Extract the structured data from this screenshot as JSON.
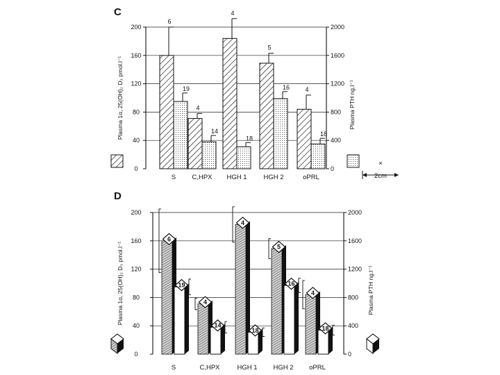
{
  "chart_data": [
    {
      "panel": "C",
      "type": "bar",
      "style": "hatched-2d",
      "categories": [
        "S",
        "C,HPX",
        "HGH 1",
        "HGH 2",
        "oPRL"
      ],
      "left_axis": {
        "label": "Plasma 1α, 25(OH)₂ D₃ pmol.l⁻¹",
        "ticks": [
          "0",
          "40",
          "80",
          "120",
          "160",
          "200"
        ],
        "range": [
          0,
          200
        ]
      },
      "right_axis": {
        "label": "Plasma PTH  ng.l⁻¹",
        "ticks": [
          "0",
          "400",
          "800",
          "1200",
          "1600",
          "2000"
        ],
        "range": [
          0,
          2000
        ]
      },
      "series": [
        {
          "name": "Plasma 1α, 25(OH)₂ D₃",
          "axis": "left",
          "values": [
            160,
            71,
            184,
            149,
            84
          ],
          "errors": [
            40,
            7,
            28,
            14,
            20
          ],
          "n": [
            "6",
            "4",
            "4",
            "5",
            "4"
          ]
        },
        {
          "name": "Plasma PTH",
          "axis": "right",
          "values": [
            950,
            380,
            310,
            990,
            350
          ],
          "errors": [
            120,
            90,
            60,
            100,
            80
          ],
          "n": [
            "19",
            "14",
            "18",
            "16",
            "18"
          ]
        }
      ],
      "scale_bar": {
        "mark": "×",
        "label": "2cm"
      },
      "grid": "horizontal"
    },
    {
      "panel": "D",
      "type": "bar",
      "style": "3d-columns",
      "categories": [
        "S",
        "C,HPX",
        "HGH 1",
        "HGH 2",
        "oPRL"
      ],
      "left_axis": {
        "label": "Plasma 1α, 25(OH)₂ D₃ pmol.l⁻¹",
        "ticks": [
          "0",
          "40",
          "80",
          "120",
          "160",
          "200"
        ],
        "range": [
          0,
          200
        ]
      },
      "right_axis": {
        "label": "Plasma PTH ng.l⁻¹",
        "ticks": [
          "0",
          "400",
          "800",
          "1200",
          "1600",
          "2000"
        ],
        "range": [
          0,
          2000
        ]
      },
      "series": [
        {
          "name": "Plasma 1α, 25(OH)₂ D₃",
          "axis": "left",
          "values": [
            160,
            71,
            183,
            149,
            84
          ],
          "errors": [
            45,
            8,
            25,
            14,
            20
          ],
          "n": [
            "6",
            "4",
            "4",
            "5",
            "4"
          ]
        },
        {
          "name": "Plasma PTH",
          "axis": "right",
          "values": [
            950,
            380,
            310,
            970,
            340
          ],
          "errors": [
            110,
            80,
            60,
            100,
            70
          ],
          "n": [
            "19",
            "14",
            "18",
            "16",
            "18"
          ]
        }
      ],
      "grid": "horizontal"
    }
  ]
}
